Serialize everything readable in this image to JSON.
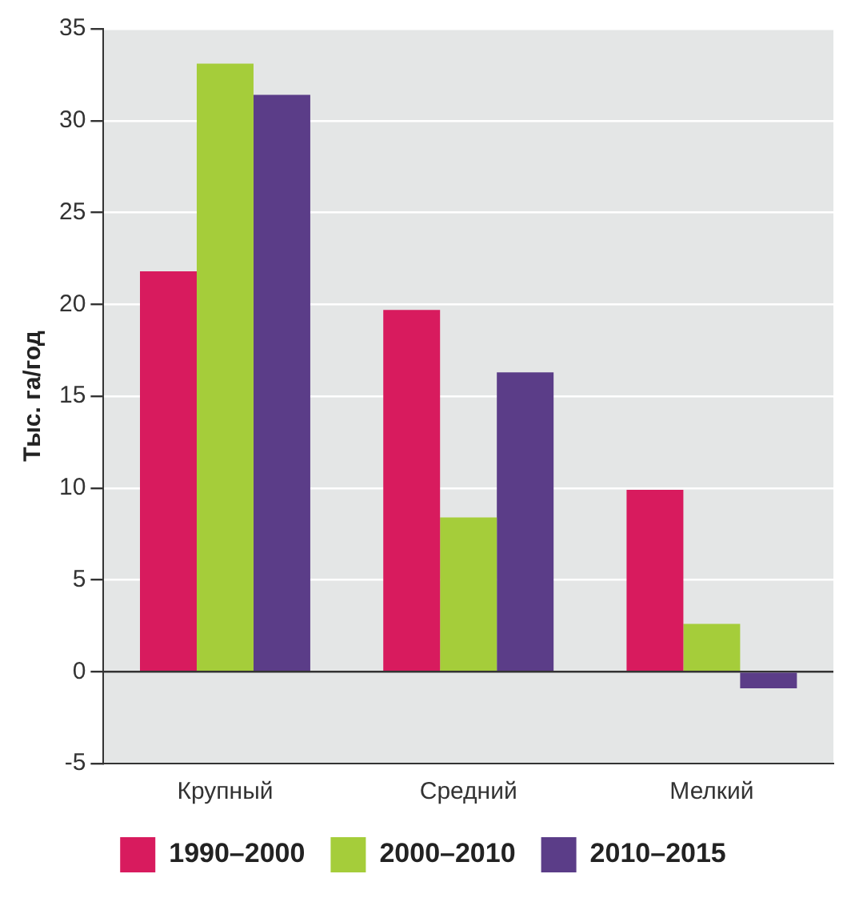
{
  "chart_data": {
    "type": "bar",
    "ylabel": "Тыс. га/год",
    "categories": [
      "Крупный",
      "Средний",
      "Мелкий"
    ],
    "series": [
      {
        "name": "1990–2000",
        "color": "#d81b5e",
        "values": [
          21.8,
          19.7,
          9.9
        ]
      },
      {
        "name": "2000–2010",
        "color": "#a5cd3a",
        "values": [
          33.1,
          8.4,
          2.6
        ]
      },
      {
        "name": "2010–2015",
        "color": "#5b3d88",
        "values": [
          31.4,
          16.3,
          -0.9
        ]
      }
    ],
    "ylim": [
      -5,
      35
    ],
    "yticks": [
      -5,
      0,
      5,
      10,
      15,
      20,
      25,
      30,
      35
    ],
    "grid": "y",
    "legend": "bottom"
  }
}
